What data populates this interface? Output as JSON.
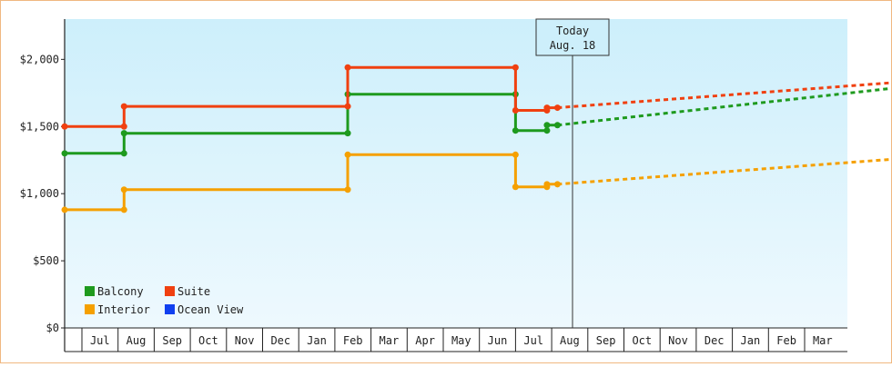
{
  "chart_data": {
    "type": "line",
    "step": true,
    "y_ticks": [
      "$0",
      "$500",
      "$1,000",
      "$1,500",
      "$2,000"
    ],
    "ylim": [
      0,
      2300
    ],
    "x_ticks": [
      "Jul",
      "Aug",
      "Sep",
      "Oct",
      "Nov",
      "Dec",
      "Jan",
      "Feb",
      "Mar",
      "Apr",
      "May",
      "Jun",
      "Jul",
      "Aug",
      "Sep",
      "Oct",
      "Nov",
      "Dec",
      "Jan",
      "Feb",
      "Mar"
    ],
    "today_label": [
      "Today",
      "Aug. 18"
    ],
    "today_x": 13.6,
    "series": [
      {
        "name": "Balcony",
        "color": "#1e9a1e",
        "points": [
          [
            0,
            1300
          ],
          [
            1.7,
            1300
          ],
          [
            1.7,
            1450
          ],
          [
            8.1,
            1450
          ],
          [
            8.1,
            1740
          ],
          [
            12.9,
            1740
          ],
          [
            12.9,
            1470
          ],
          [
            13.8,
            1470
          ],
          [
            13.8,
            1510
          ],
          [
            14.1,
            1510
          ]
        ],
        "forecast": [
          [
            14.1,
            1510
          ],
          [
            24.9,
            1820
          ]
        ]
      },
      {
        "name": "Suite",
        "color": "#f04010",
        "points": [
          [
            0,
            1500
          ],
          [
            1.7,
            1500
          ],
          [
            1.7,
            1650
          ],
          [
            8.1,
            1650
          ],
          [
            8.1,
            1940
          ],
          [
            12.9,
            1940
          ],
          [
            12.9,
            1620
          ],
          [
            13.8,
            1620
          ],
          [
            13.8,
            1640
          ],
          [
            14.1,
            1640
          ]
        ],
        "forecast": [
          [
            14.1,
            1640
          ],
          [
            24.9,
            1850
          ]
        ]
      },
      {
        "name": "Interior",
        "color": "#f5a000",
        "points": [
          [
            0,
            880
          ],
          [
            1.7,
            880
          ],
          [
            1.7,
            1030
          ],
          [
            8.1,
            1030
          ],
          [
            8.1,
            1290
          ],
          [
            12.9,
            1290
          ],
          [
            12.9,
            1050
          ],
          [
            13.8,
            1050
          ],
          [
            13.8,
            1070
          ],
          [
            14.1,
            1070
          ]
        ],
        "forecast": [
          [
            14.1,
            1070
          ],
          [
            24.9,
            1280
          ]
        ]
      },
      {
        "name": "Ocean View",
        "color": "#1040f0",
        "points": [],
        "forecast": []
      }
    ],
    "legend": [
      "Balcony",
      "Suite",
      "Interior",
      "Ocean View"
    ],
    "legend_colors": [
      "#1e9a1e",
      "#f04010",
      "#f5a000",
      "#1040f0"
    ]
  }
}
